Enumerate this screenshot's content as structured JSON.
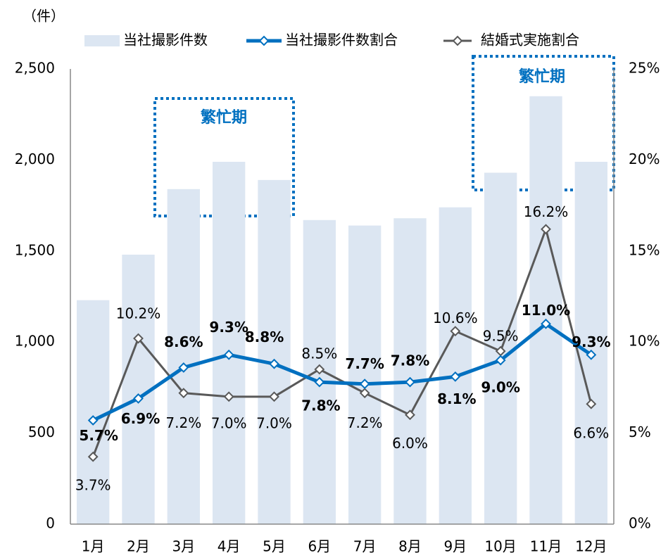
{
  "chart_data": {
    "type": "bar_line",
    "y_label": "（件）",
    "categories": [
      "1月",
      "2月",
      "3月",
      "4月",
      "5月",
      "6月",
      "7月",
      "8月",
      "9月",
      "10月",
      "11月",
      "12月"
    ],
    "series": [
      {
        "name": "当社撮影件数",
        "type": "bar",
        "color": "#dce6f2",
        "values": [
          1230,
          1480,
          1840,
          1990,
          1890,
          1670,
          1640,
          1680,
          1740,
          1930,
          2350,
          1990
        ]
      },
      {
        "name": "当社撮影件数割合",
        "type": "line",
        "axis": "y2",
        "color": "#0070c0",
        "values": [
          5.7,
          6.9,
          8.6,
          9.3,
          8.8,
          7.8,
          7.7,
          7.8,
          8.1,
          9.0,
          11.0,
          9.3
        ],
        "value_labels": [
          "5.7%",
          "6.9%",
          "8.6%",
          "9.3%",
          "8.8%",
          "7.8%",
          "7.7%",
          "7.8%",
          "8.1%",
          "9.0%",
          "11.0%",
          "9.3%"
        ]
      },
      {
        "name": "結婚式実施割合",
        "type": "line",
        "axis": "y2",
        "color": "#595959",
        "values": [
          3.7,
          10.2,
          7.2,
          7.0,
          7.0,
          8.5,
          7.2,
          6.0,
          10.6,
          9.5,
          16.2,
          6.6
        ],
        "value_labels": [
          "3.7%",
          "10.2%",
          "7.2%",
          "7.0%",
          "7.0%",
          "8.5%",
          "7.2%",
          "6.0%",
          "10.6%",
          "9.5%",
          "16.2%",
          "6.6%"
        ]
      }
    ],
    "ylim": [
      0,
      2500
    ],
    "yticks": [
      0,
      500,
      {
        "value": 1000,
        "label": "1,000"
      },
      {
        "value": 1500,
        "label": "1,500"
      },
      {
        "value": 2000,
        "label": "2,000"
      },
      {
        "value": 2500,
        "label": "2,500"
      }
    ],
    "y2lim": [
      0,
      25
    ],
    "y2ticks": [
      {
        "value": 0,
        "label": "0%"
      },
      {
        "value": 5,
        "label": "5%"
      },
      {
        "value": 10,
        "label": "10%"
      },
      {
        "value": 15,
        "label": "15%"
      },
      {
        "value": 20,
        "label": "20%"
      },
      {
        "value": 25,
        "label": "25%"
      }
    ],
    "grid": false,
    "legend": "top",
    "annotations": [
      "繁忙期",
      "繁忙期"
    ]
  }
}
